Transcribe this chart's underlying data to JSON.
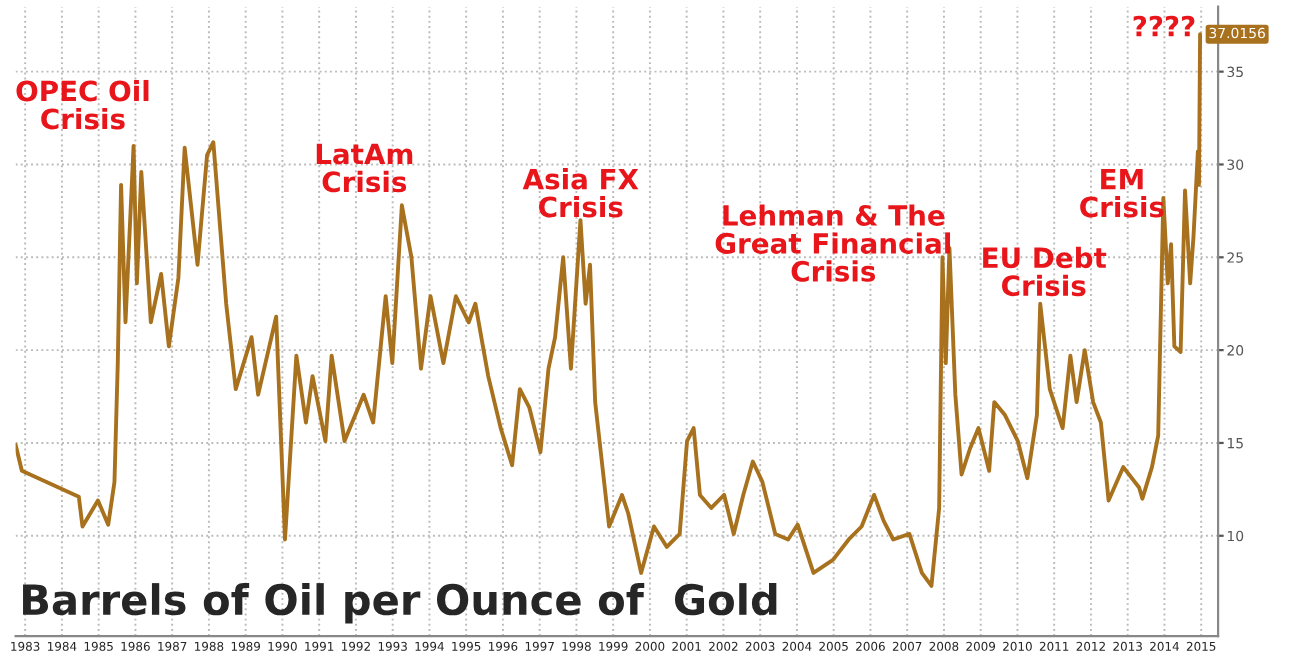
{
  "chart_data": {
    "type": "line",
    "title": "Barrels of Oil per Ounce of  Gold",
    "annotations": [
      "OPEC Oil\nCrisis",
      "LatAm\nCrisis",
      "Asia FX\nCrisis",
      "Lehman & The\nGreat Financial\nCrisis",
      "EU Debt\nCrisis",
      "EM\nCrisis",
      "????"
    ],
    "series": [
      {
        "color": "#a8711e",
        "x": [
          1983.24,
          1983.41,
          1984.96,
          1985.06,
          1985.48,
          1985.76,
          1985.93,
          1986.02,
          1986.11,
          1986.23,
          1986.45,
          1986.54,
          1986.66,
          1986.92,
          1987.2,
          1987.41,
          1987.67,
          1987.84,
          1988.19,
          1988.45,
          1988.62,
          1988.97,
          1989.23,
          1989.66,
          1989.84,
          1990.33,
          1990.57,
          1990.88,
          1991.14,
          1991.32,
          1991.67,
          1991.84,
          1992.19,
          1992.71,
          1992.97,
          1993.31,
          1993.49,
          1993.75,
          1994.01,
          1994.27,
          1994.53,
          1994.88,
          1995.22,
          1995.57,
          1995.75,
          1996.1,
          1996.44,
          1996.75,
          1996.96,
          1997.22,
          1997.52,
          1997.74,
          1997.92,
          1998.14,
          1998.35,
          1998.61,
          1998.75,
          1998.87,
          1999.01,
          1999.39,
          1999.74,
          1999.91,
          2000.26,
          2000.61,
          2000.96,
          2001.31,
          2001.51,
          2001.69,
          2001.86,
          2002.17,
          2002.52,
          2002.78,
          2003.04,
          2003.3,
          2003.56,
          2003.91,
          2004.26,
          2004.52,
          2004.95,
          2005.48,
          2005.91,
          2006.26,
          2006.6,
          2006.86,
          2007.12,
          2007.56,
          2007.9,
          2008.16,
          2008.37,
          2008.46,
          2008.55,
          2008.65,
          2008.81,
          2008.98,
          2009.21,
          2009.44,
          2009.73,
          2009.87,
          2010.16,
          2010.51,
          2010.77,
          2011.03,
          2011.12,
          2011.38,
          2011.73,
          2011.94,
          2012.11,
          2012.33,
          2012.56,
          2012.77,
          2012.98,
          2013.38,
          2013.81,
          2013.9,
          2014.16,
          2014.33,
          2014.47,
          2014.59,
          2014.68,
          2014.77,
          2014.94,
          2015.06,
          2015.2,
          2015.29,
          2015.41,
          2015.44,
          2015.47
        ],
        "values": [
          14.9,
          13.5,
          12.1,
          10.5,
          11.9,
          10.6,
          12.9,
          19.3,
          28.9,
          21.5,
          31.0,
          23.6,
          29.6,
          21.5,
          24.1,
          20.2,
          23.9,
          30.9,
          24.6,
          30.5,
          31.2,
          22.5,
          17.9,
          20.7,
          17.6,
          21.8,
          9.8,
          19.7,
          16.1,
          18.6,
          15.1,
          19.7,
          15.1,
          17.6,
          16.1,
          22.9,
          19.3,
          27.8,
          25.0,
          19.0,
          22.9,
          19.3,
          22.9,
          21.5,
          22.5,
          18.6,
          15.8,
          13.8,
          17.9,
          16.9,
          14.5,
          19.0,
          20.7,
          25.0,
          19.0,
          27.0,
          22.5,
          24.6,
          17.2,
          10.5,
          12.2,
          11.2,
          8.0,
          10.5,
          9.4,
          10.1,
          15.1,
          15.8,
          12.2,
          11.5,
          12.2,
          10.1,
          12.2,
          14.0,
          12.9,
          10.1,
          9.8,
          10.6,
          8.0,
          8.7,
          9.8,
          10.5,
          12.2,
          10.8,
          9.8,
          10.1,
          8.0,
          7.3,
          11.5,
          25.0,
          19.3,
          25.5,
          17.6,
          13.3,
          14.7,
          15.8,
          13.5,
          17.2,
          16.5,
          15.1,
          13.1,
          16.5,
          22.5,
          17.9,
          15.8,
          19.7,
          17.2,
          20.0,
          17.2,
          16.1,
          11.9,
          13.7,
          12.6,
          12.0,
          13.7,
          15.4,
          28.2,
          23.6,
          25.7,
          20.2,
          19.9,
          28.6,
          23.6,
          26.1,
          30.7,
          28.9,
          37.0156
        ],
        "value_labels": [
          null,
          null,
          null,
          null,
          null,
          null,
          null,
          null,
          null,
          null,
          null,
          null,
          null,
          null,
          null,
          null,
          null,
          null,
          null,
          null,
          null,
          null,
          null,
          null,
          null,
          null,
          null,
          null,
          null,
          null,
          null,
          null,
          null,
          null,
          null,
          null,
          null,
          null,
          null,
          null,
          null,
          null,
          null,
          null,
          null,
          null,
          null,
          null,
          null,
          null,
          null,
          null,
          null,
          null,
          null,
          null,
          null,
          null,
          null,
          null,
          null,
          null,
          null,
          null,
          null,
          null,
          null,
          null,
          null,
          null,
          null,
          null,
          null,
          null,
          null,
          null,
          null,
          null,
          null,
          null,
          null,
          null,
          null,
          null,
          null,
          null,
          null,
          null,
          null,
          null,
          null,
          null,
          null,
          null,
          null,
          null,
          null,
          null,
          null,
          null,
          null,
          null,
          null,
          null,
          null,
          null,
          null,
          null,
          null,
          null,
          null,
          null,
          null,
          null,
          null,
          null,
          null,
          null,
          null,
          null,
          null,
          null,
          null,
          null,
          null,
          null,
          "37.0156"
        ]
      }
    ],
    "xlim": [
      1983.24,
      2015.96
    ],
    "ylim": [
      4.6,
      38.5
    ],
    "xticks": [
      {
        "value": 1983.5,
        "label": "1983"
      },
      {
        "value": 1984.5,
        "label": "1984"
      },
      {
        "value": 1985.5,
        "label": "1985"
      },
      {
        "value": 1986.5,
        "label": "1986"
      },
      {
        "value": 1987.5,
        "label": "1987"
      },
      {
        "value": 1988.5,
        "label": "1988"
      },
      {
        "value": 1989.5,
        "label": "1989"
      },
      {
        "value": 1990.5,
        "label": "1990"
      },
      {
        "value": 1991.5,
        "label": "1991"
      },
      {
        "value": 1992.5,
        "label": "1992"
      },
      {
        "value": 1993.5,
        "label": "1993"
      },
      {
        "value": 1994.5,
        "label": "1994"
      },
      {
        "value": 1995.5,
        "label": "1995"
      },
      {
        "value": 1996.5,
        "label": "1996"
      },
      {
        "value": 1997.5,
        "label": "1997"
      },
      {
        "value": 1998.5,
        "label": "1998"
      },
      {
        "value": 1999.5,
        "label": "1999"
      },
      {
        "value": 2000.5,
        "label": "2000"
      },
      {
        "value": 2001.5,
        "label": "2001"
      },
      {
        "value": 2002.5,
        "label": "2002"
      },
      {
        "value": 2003.5,
        "label": "2003"
      },
      {
        "value": 2004.5,
        "label": "2004"
      },
      {
        "value": 2005.5,
        "label": "2005"
      },
      {
        "value": 2006.5,
        "label": "2006"
      },
      {
        "value": 2007.5,
        "label": "2007"
      },
      {
        "value": 2008.5,
        "label": "2008"
      },
      {
        "value": 2009.5,
        "label": "2009"
      },
      {
        "value": 2010.5,
        "label": "2010"
      },
      {
        "value": 2011.5,
        "label": "2011"
      },
      {
        "value": 2012.5,
        "label": "2012"
      },
      {
        "value": 2013.5,
        "label": "2013"
      },
      {
        "value": 2014.5,
        "label": "2014"
      },
      {
        "value": 2015.5,
        "label": "2015"
      }
    ],
    "yticks": [
      10,
      15,
      20,
      25,
      30,
      35
    ],
    "grid": true,
    "legend": false,
    "marker": "none",
    "line_style": "solid"
  }
}
